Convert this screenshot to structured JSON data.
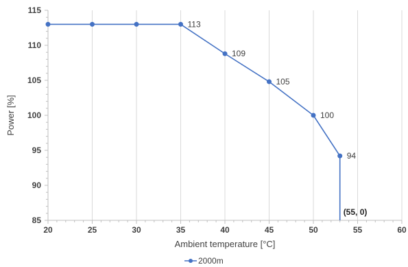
{
  "chart_data": {
    "type": "line",
    "title": "",
    "xlabel": "Ambient temperature [°C]",
    "ylabel": "Power [%]",
    "xlim": [
      20,
      60
    ],
    "ylim": [
      85,
      115
    ],
    "x_ticks": [
      20,
      25,
      30,
      35,
      40,
      45,
      50,
      55,
      60
    ],
    "y_ticks": [
      85,
      90,
      95,
      100,
      105,
      110,
      115
    ],
    "grid": "vertical",
    "legend_position": "bottom",
    "colors": {
      "series": "#4472C4",
      "grid": "#D9D9D9",
      "axis": "#BFBFBF",
      "text": "#404040"
    },
    "series": [
      {
        "name": "2000m",
        "points": [
          {
            "x": 20,
            "y": 113
          },
          {
            "x": 25,
            "y": 113
          },
          {
            "x": 30,
            "y": 113
          },
          {
            "x": 35,
            "y": 113
          },
          {
            "x": 40,
            "y": 108.8
          },
          {
            "x": 45,
            "y": 104.8
          },
          {
            "x": 50,
            "y": 100
          },
          {
            "x": 53,
            "y": 94.2
          },
          {
            "x": 53,
            "y": 85
          }
        ],
        "point_labels": [
          "",
          "",
          "",
          "113",
          "109",
          "105",
          "100",
          "94",
          ""
        ]
      }
    ],
    "annotations": [
      {
        "text": "(55, 0)",
        "x": 53,
        "y": 86.2
      }
    ]
  }
}
